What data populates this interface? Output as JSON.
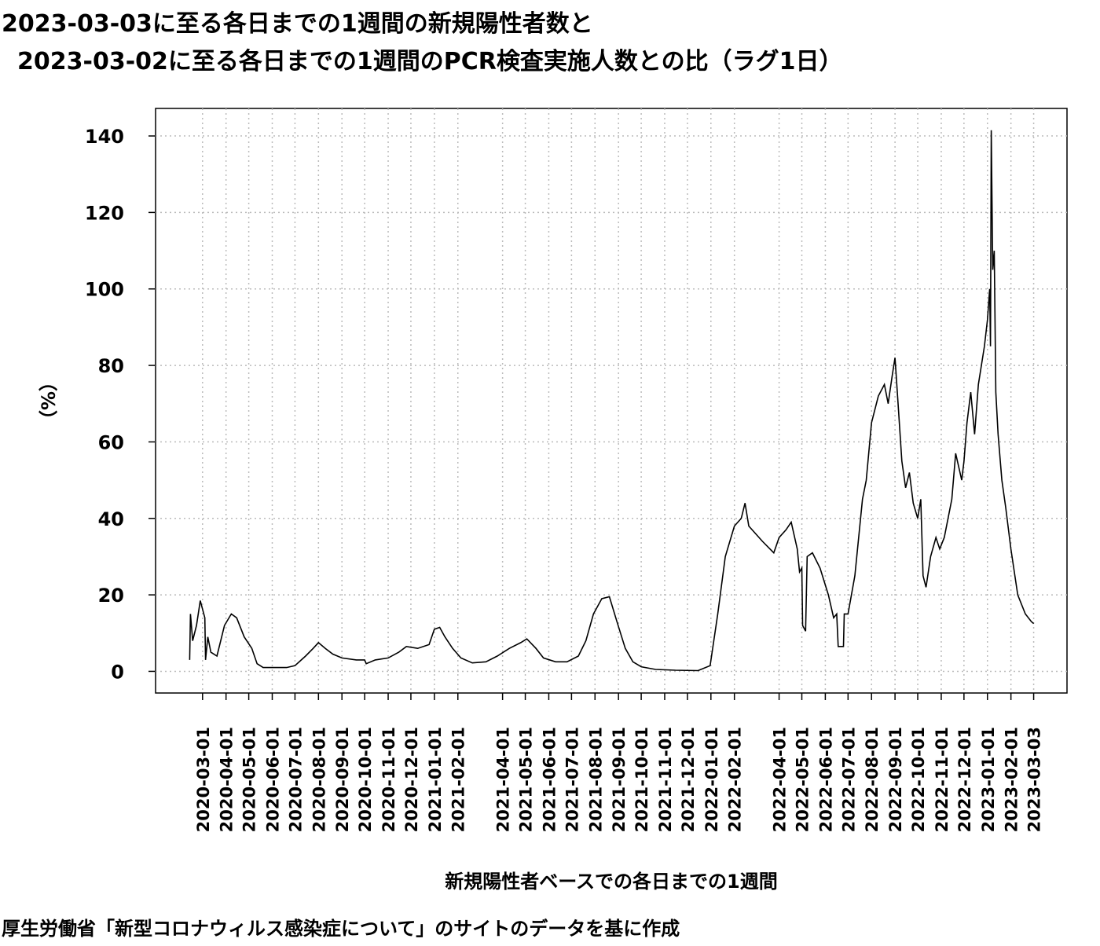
{
  "chart_data": {
    "type": "line",
    "title": [
      "2023-03-03に至る各日までの1週間の新規陽性者数と",
      "2023-03-02に至る各日までの1週間のPCR検査実施人数との比（ラグ1日）"
    ],
    "xlabel": "新規陽性者ベースでの各日までの1週間",
    "ylabel": "（%）",
    "caption": "厚生労働省「新型コロナウィルス感染症について」のサイトのデータを基に作成",
    "color": "#000000",
    "grid": true,
    "xlim": [
      "2019-12-30",
      "2023-04-16"
    ],
    "ylim": [
      -5.66,
      147.2
    ],
    "yticks": [
      0,
      20,
      40,
      60,
      80,
      100,
      120,
      140
    ],
    "xticks": [
      "2020-03-01",
      "2020-04-01",
      "2020-05-01",
      "2020-06-01",
      "2020-07-01",
      "2020-08-01",
      "2020-09-01",
      "2020-10-01",
      "2020-11-01",
      "2020-12-01",
      "2021-01-01",
      "2021-02-01",
      "2021-04-01",
      "2021-05-01",
      "2021-06-01",
      "2021-07-01",
      "2021-08-01",
      "2021-09-01",
      "2021-10-01",
      "2021-11-01",
      "2021-12-01",
      "2022-01-01",
      "2022-02-01",
      "2022-04-01",
      "2022-05-01",
      "2022-06-01",
      "2022-07-01",
      "2022-08-01",
      "2022-09-01",
      "2022-10-01",
      "2022-11-01",
      "2022-12-01",
      "2023-01-01",
      "2023-02-01",
      "2023-03-03"
    ],
    "x": [
      "2020-02-13",
      "2020-02-14",
      "2020-02-17",
      "2020-02-22",
      "2020-02-27",
      "2020-03-04",
      "2020-03-05",
      "2020-03-08",
      "2020-03-12",
      "2020-03-20",
      "2020-03-30",
      "2020-04-08",
      "2020-04-15",
      "2020-04-25",
      "2020-05-05",
      "2020-05-12",
      "2020-05-20",
      "2020-06-01",
      "2020-06-20",
      "2020-07-01",
      "2020-07-15",
      "2020-07-25",
      "2020-08-01",
      "2020-08-10",
      "2020-08-20",
      "2020-09-01",
      "2020-09-20",
      "2020-10-01",
      "2020-10-03",
      "2020-10-15",
      "2020-11-01",
      "2020-11-15",
      "2020-11-25",
      "2020-12-10",
      "2020-12-25",
      "2021-01-01",
      "2021-01-08",
      "2021-01-15",
      "2021-01-25",
      "2021-02-05",
      "2021-02-20",
      "2021-03-10",
      "2021-03-25",
      "2021-04-10",
      "2021-04-25",
      "2021-05-03",
      "2021-05-15",
      "2021-05-25",
      "2021-06-10",
      "2021-06-25",
      "2021-07-10",
      "2021-07-20",
      "2021-07-30",
      "2021-08-10",
      "2021-08-20",
      "2021-08-30",
      "2021-09-10",
      "2021-09-20",
      "2021-10-01",
      "2021-10-20",
      "2021-11-15",
      "2021-12-15",
      "2021-12-31",
      "2022-01-10",
      "2022-01-20",
      "2022-02-01",
      "2022-02-10",
      "2022-02-15",
      "2022-02-20",
      "2022-03-10",
      "2022-03-25",
      "2022-04-01",
      "2022-04-10",
      "2022-04-17",
      "2022-04-25",
      "2022-04-28",
      "2022-05-01",
      "2022-05-02",
      "2022-05-06",
      "2022-05-08",
      "2022-05-15",
      "2022-05-25",
      "2022-06-05",
      "2022-06-12",
      "2022-06-16",
      "2022-06-18",
      "2022-06-25",
      "2022-06-26",
      "2022-07-01",
      "2022-07-10",
      "2022-07-20",
      "2022-07-25",
      "2022-08-01",
      "2022-08-10",
      "2022-08-18",
      "2022-08-23",
      "2022-08-28",
      "2022-09-01",
      "2022-09-05",
      "2022-09-10",
      "2022-09-15",
      "2022-09-20",
      "2022-09-25",
      "2022-10-01",
      "2022-10-05",
      "2022-10-08",
      "2022-10-12",
      "2022-10-18",
      "2022-10-25",
      "2022-10-30",
      "2022-11-05",
      "2022-11-15",
      "2022-11-20",
      "2022-11-28",
      "2022-12-01",
      "2022-12-05",
      "2022-12-10",
      "2022-12-15",
      "2022-12-20",
      "2022-12-28",
      "2023-01-01",
      "2023-01-04",
      "2023-01-05",
      "2023-01-06",
      "2023-01-08",
      "2023-01-10",
      "2023-01-12",
      "2023-01-15",
      "2023-01-20",
      "2023-01-25",
      "2023-02-01",
      "2023-02-10",
      "2023-02-20",
      "2023-02-28",
      "2023-03-03"
    ],
    "values": [
      3,
      15,
      8,
      12,
      18.5,
      14,
      3,
      9,
      5,
      4,
      12,
      15,
      14,
      9,
      6,
      2,
      1,
      1,
      1,
      1.5,
      4,
      6,
      7.5,
      6,
      4.5,
      3.5,
      3,
      3,
      2,
      3,
      3.5,
      5,
      6.5,
      6,
      7,
      11,
      11.5,
      9,
      6,
      3.5,
      2.2,
      2.5,
      4,
      6,
      7.5,
      8.5,
      6,
      3.5,
      2.5,
      2.5,
      4,
      8,
      15,
      19,
      19.5,
      13,
      6,
      2.5,
      1.2,
      0.5,
      0.3,
      0.2,
      1.5,
      15,
      30,
      38,
      40,
      44,
      38,
      34,
      31,
      35,
      37,
      39,
      32,
      26,
      27,
      12,
      10.5,
      30,
      31,
      27,
      20,
      14,
      15,
      6.5,
      6.5,
      15,
      15,
      25,
      45,
      50,
      65,
      72,
      75,
      70,
      77,
      82,
      70,
      55,
      48,
      52,
      44,
      40,
      45,
      25,
      22,
      30,
      35,
      32,
      35,
      45,
      57,
      50,
      55,
      65,
      73,
      62,
      75,
      85,
      92,
      100,
      85,
      141.5,
      105,
      110,
      73,
      62,
      50,
      43,
      32,
      20,
      15,
      13,
      12.5
    ]
  }
}
